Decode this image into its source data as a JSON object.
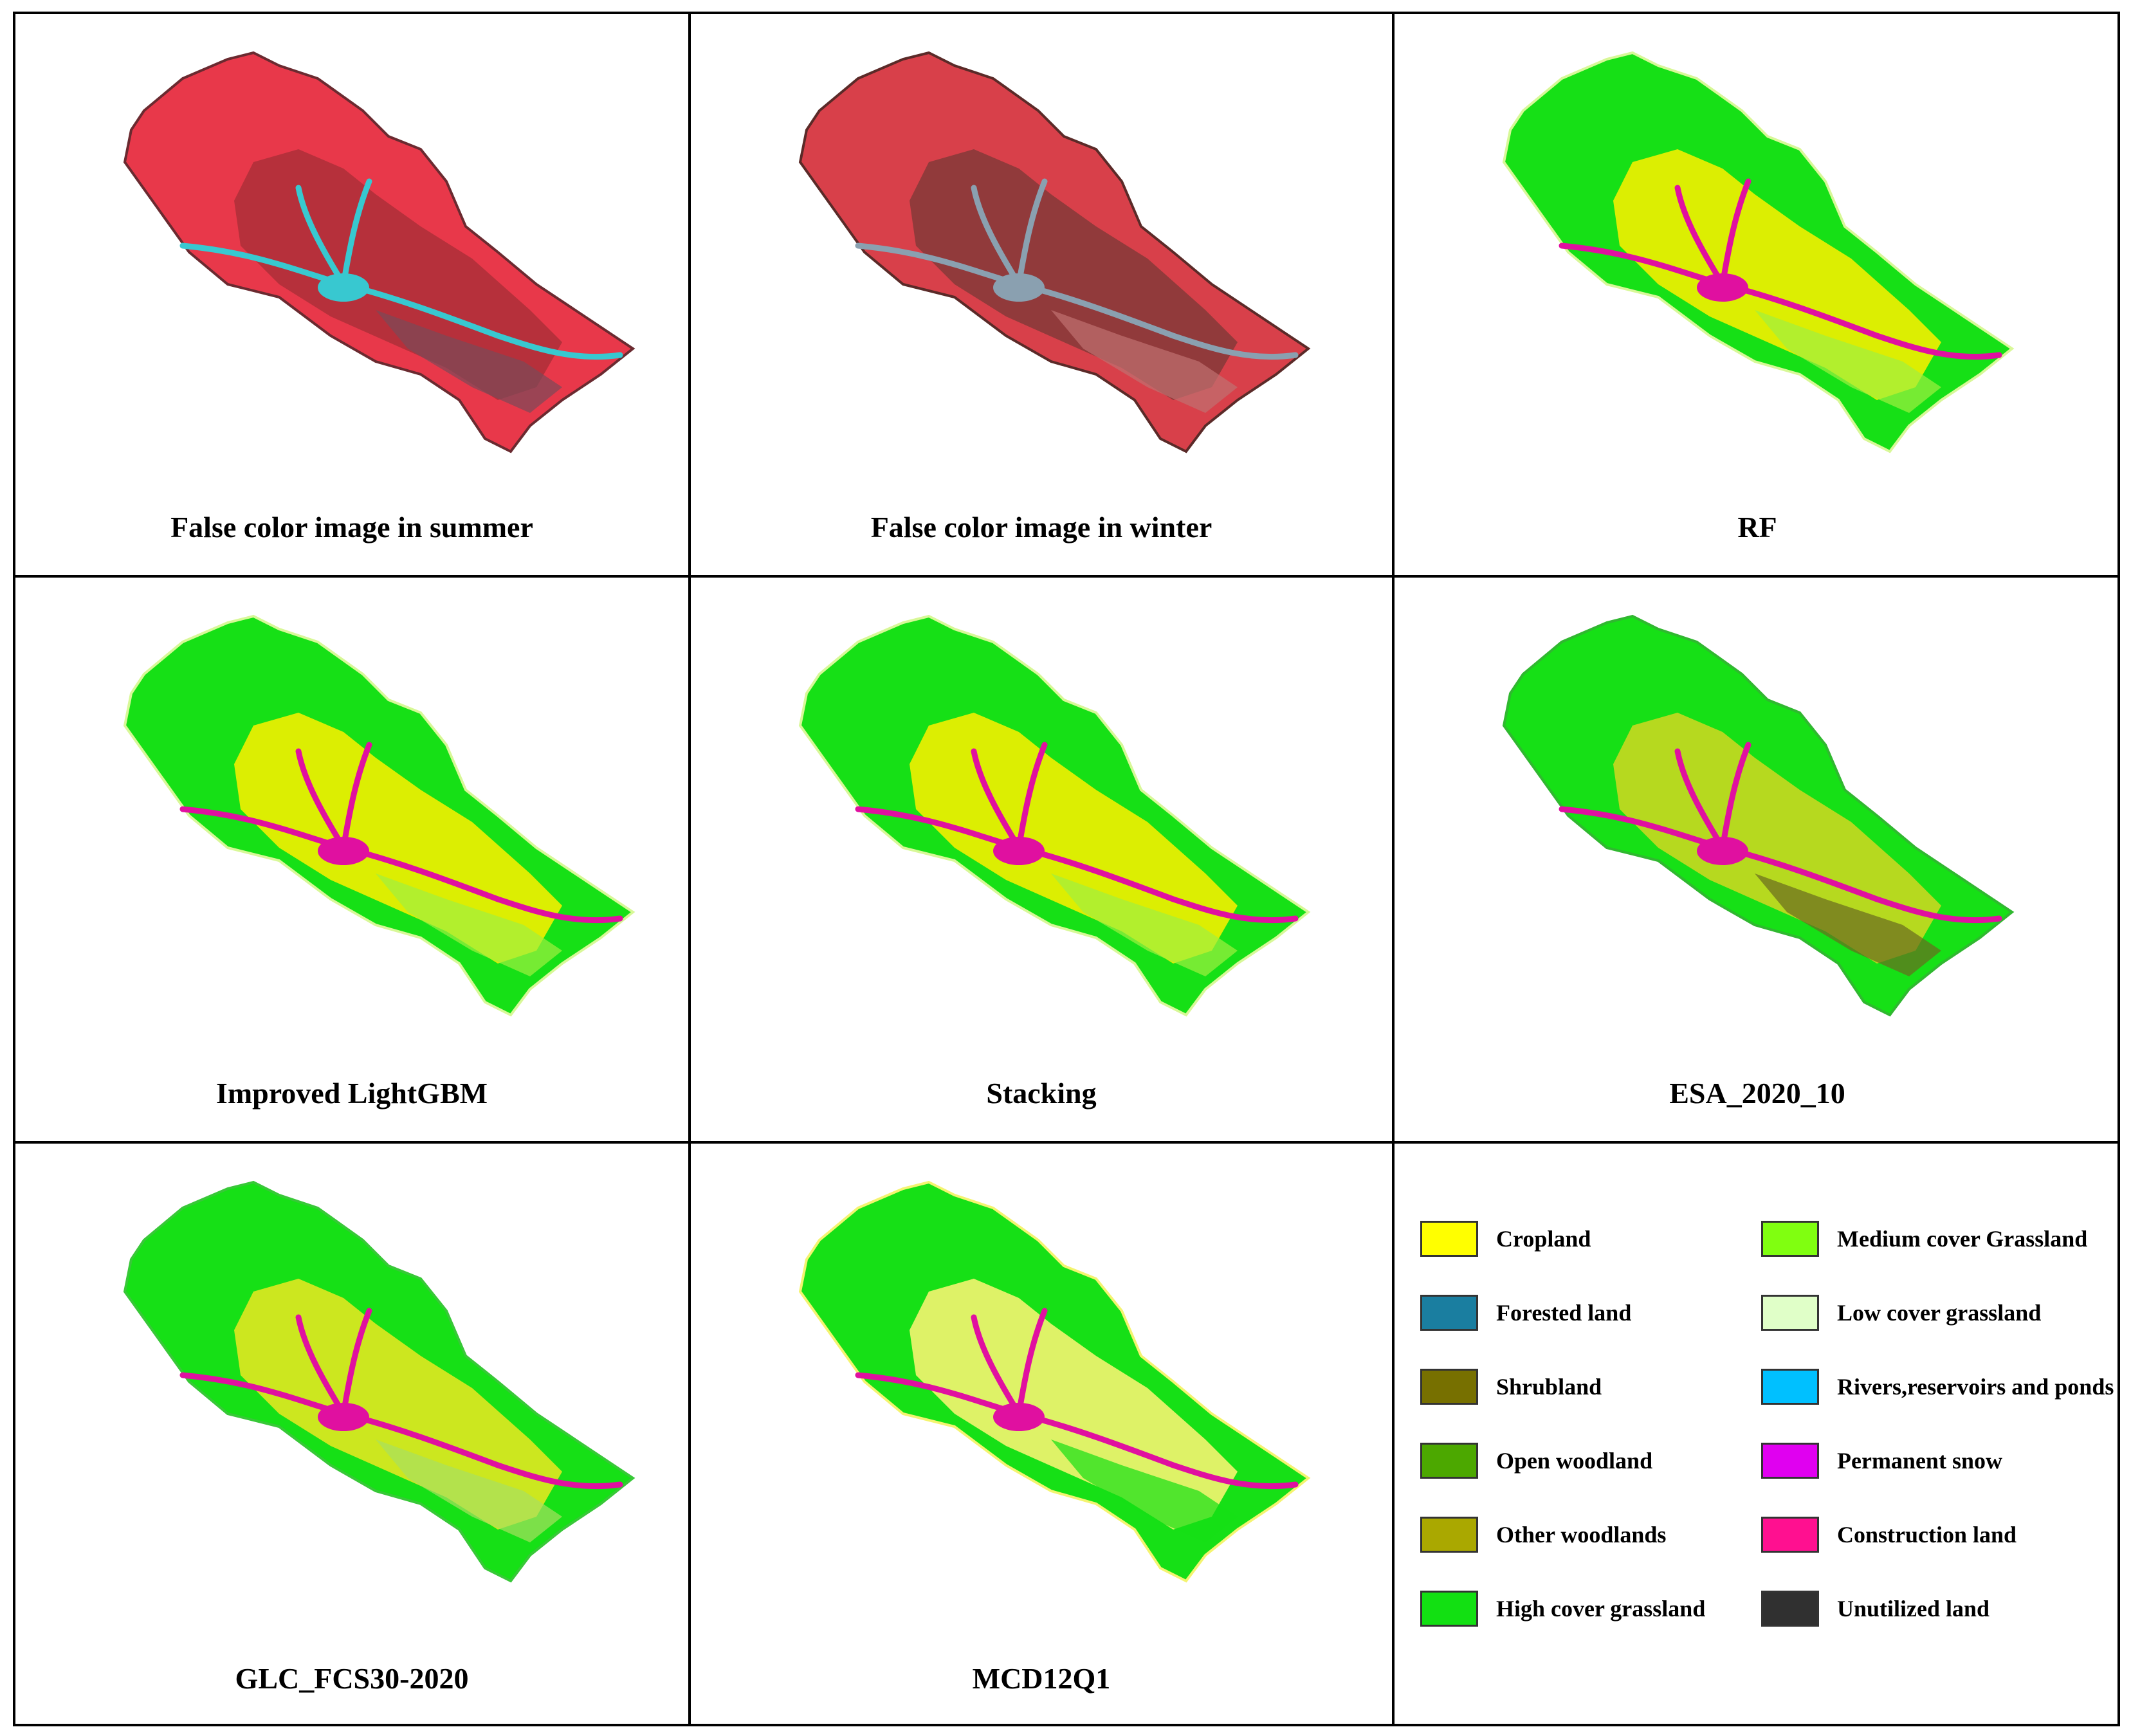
{
  "panels": [
    {
      "id": "summer",
      "caption": "False color image in summer",
      "palette": [
        "#e8384a",
        "#b0303a",
        "#6a2a30",
        "#38c8d0",
        "#7a4a58"
      ]
    },
    {
      "id": "winter",
      "caption": "False color image in winter",
      "palette": [
        "#d8404a",
        "#8a3a3a",
        "#5a2a28",
        "#8aa0b0",
        "#c07070"
      ]
    },
    {
      "id": "rf",
      "caption": "RF",
      "palette": [
        "#16e016",
        "#f2f000",
        "#d8f898",
        "#e010a0",
        "#a0f040"
      ]
    },
    {
      "id": "lgbm",
      "caption": "Improved LightGBM",
      "palette": [
        "#16e016",
        "#f2f000",
        "#d8f898",
        "#e010a0",
        "#a0f040"
      ]
    },
    {
      "id": "stacking",
      "caption": "Stacking",
      "palette": [
        "#16e016",
        "#f2f000",
        "#d8f898",
        "#e010a0",
        "#a0f040"
      ]
    },
    {
      "id": "esa",
      "caption": "ESA_2020_10",
      "palette": [
        "#16e016",
        "#c8d820",
        "#30b830",
        "#e010a0",
        "#6a6a20"
      ]
    },
    {
      "id": "glc",
      "caption": "GLC_FCS30-2020",
      "palette": [
        "#16e016",
        "#e0e820",
        "#38c838",
        "#e010a0",
        "#a8e060"
      ]
    },
    {
      "id": "mcd",
      "caption": "MCD12Q1",
      "palette": [
        "#16e016",
        "#f4f470",
        "#f4f470",
        "#e010a0",
        "#16e016"
      ]
    }
  ],
  "legend": [
    {
      "label": "Cropland",
      "color": "#ffff00"
    },
    {
      "label": "Forested land",
      "color": "#1a7ea0"
    },
    {
      "label": "Shrubland",
      "color": "#777000"
    },
    {
      "label": "Open woodland",
      "color": "#4ca800"
    },
    {
      "label": "Other woodlands",
      "color": "#aaa800"
    },
    {
      "label": "High cover grassland",
      "color": "#12e012"
    },
    {
      "label": "Medium cover Grassland",
      "color": "#80ff10"
    },
    {
      "label": "Low cover grassland",
      "color": "#e0ffc8"
    },
    {
      "label": "Rivers,reservoirs and ponds",
      "color": "#00c0ff"
    },
    {
      "label": "Permanent snow",
      "color": "#e000f0"
    },
    {
      "label": "Construction land",
      "color": "#ff1090"
    },
    {
      "label": "Unutilized land",
      "color": "#303030"
    }
  ]
}
